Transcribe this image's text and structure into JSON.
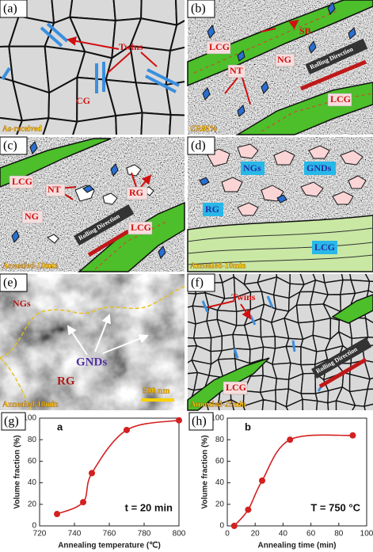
{
  "panels": [
    {
      "label": "(a)",
      "caption": "As-received",
      "annotations": [
        "Twins",
        "CG"
      ]
    },
    {
      "label": "(b)",
      "caption": "CR85%",
      "annotations": [
        "LCG",
        "SB",
        "NG",
        "NT",
        "Rolling Direction",
        "LCG"
      ]
    },
    {
      "label": "(c)",
      "caption": "Annealed-10min",
      "annotations": [
        "LCG",
        "NT",
        "RG",
        "NG",
        "Rolling Direction",
        "LCG"
      ]
    },
    {
      "label": "(d)",
      "caption": "Annealed-10min",
      "annotations": [
        "NGs",
        "GNDs",
        "RG",
        "LCG"
      ]
    },
    {
      "label": "(e)",
      "caption": "Annealed-10min",
      "annotations": [
        "NGs",
        "GNDs",
        "RG",
        "500 nm"
      ]
    },
    {
      "label": "(f)",
      "caption": "Annealed-25min",
      "annotations": [
        "Twins",
        "LCG",
        "Rolling Direction"
      ]
    }
  ],
  "chart_data": [
    {
      "type": "line",
      "panel_label": "(g)",
      "annotation": "a",
      "note": "t = 20 min",
      "x_label": "Annealing temperature (℃)",
      "y_label": "Volume fraction (%)",
      "x": [
        730,
        745,
        750,
        770,
        800
      ],
      "values": [
        11,
        22,
        49,
        89,
        98
      ],
      "color": "#d42020",
      "xlim": [
        720,
        800
      ],
      "xticks": [
        720,
        740,
        760,
        780,
        800
      ],
      "ylim": [
        0,
        100
      ],
      "yticks": [
        0,
        20,
        40,
        60,
        80,
        100
      ]
    },
    {
      "type": "line",
      "panel_label": "(h)",
      "annotation": "b",
      "note": "T = 750 °C",
      "x_label": "Annealing time (min)",
      "y_label": "Volume fraction (%)",
      "x": [
        5,
        15,
        25,
        45,
        90
      ],
      "values": [
        0,
        15,
        42,
        80,
        84
      ],
      "color": "#d42020",
      "xlim": [
        0,
        100
      ],
      "xticks": [
        0,
        20,
        40,
        60,
        80,
        100
      ],
      "ylim": [
        0,
        100
      ],
      "yticks": [
        0,
        20,
        40,
        60,
        80,
        100
      ]
    }
  ]
}
